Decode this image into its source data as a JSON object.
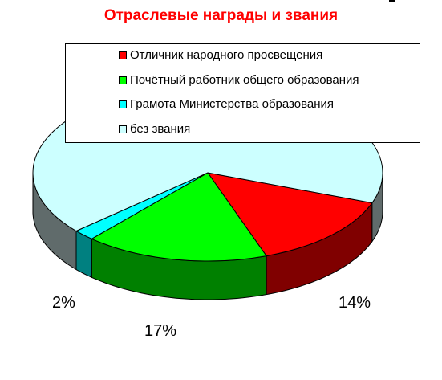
{
  "chart_data": {
    "type": "pie",
    "title": "Отраслевые награды и звания",
    "categories": [
      "Отличник народного просвещения",
      "Почётный работник общего образования",
      "Грамота Министерства образования",
      "без звания"
    ],
    "values": [
      14,
      17,
      2,
      67
    ],
    "data_labels": [
      "14%",
      "17%",
      "2%",
      ""
    ],
    "colors": [
      "#ff0000",
      "#00ff00",
      "#00ffff",
      "#ccffff"
    ],
    "side_colors": [
      "#800000",
      "#008000",
      "#008080",
      "#606b6b"
    ],
    "legend_position": "top",
    "style": "3d"
  }
}
